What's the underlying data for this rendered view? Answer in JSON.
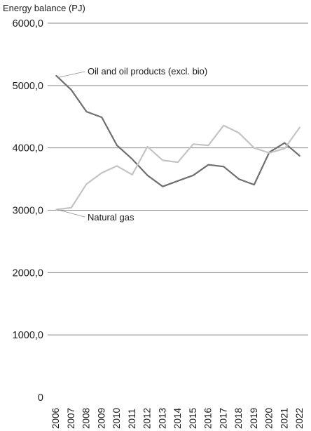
{
  "chart_data": {
    "type": "line",
    "ylabel": "Energy balance (PJ)",
    "xlabel": "",
    "x": [
      "2006",
      "2007",
      "2008",
      "2009",
      "2010",
      "2011",
      "2012",
      "2013",
      "2014",
      "2015",
      "2016",
      "2017",
      "2018",
      "2019",
      "2020",
      "2021",
      "2022"
    ],
    "yticks": [
      "0",
      "1000,0",
      "2000,0",
      "3000,0",
      "4000,0",
      "5000,0",
      "6000,0"
    ],
    "ylim": [
      0,
      6000
    ],
    "grid": true,
    "legend": "inline labels",
    "series": [
      {
        "name": "Oil and oil products (excl. bio)",
        "color": "#6e6e6e",
        "values": [
          5160,
          4930,
          4580,
          4490,
          4040,
          3820,
          3560,
          3380,
          3470,
          3560,
          3730,
          3700,
          3500,
          3410,
          3930,
          4080,
          3870
        ]
      },
      {
        "name": "Natural gas",
        "color": "#c4c4c4",
        "values": [
          3010,
          3040,
          3420,
          3600,
          3710,
          3570,
          4020,
          3800,
          3770,
          4060,
          4040,
          4360,
          4240,
          4000,
          3920,
          3990,
          4330
        ]
      }
    ]
  }
}
